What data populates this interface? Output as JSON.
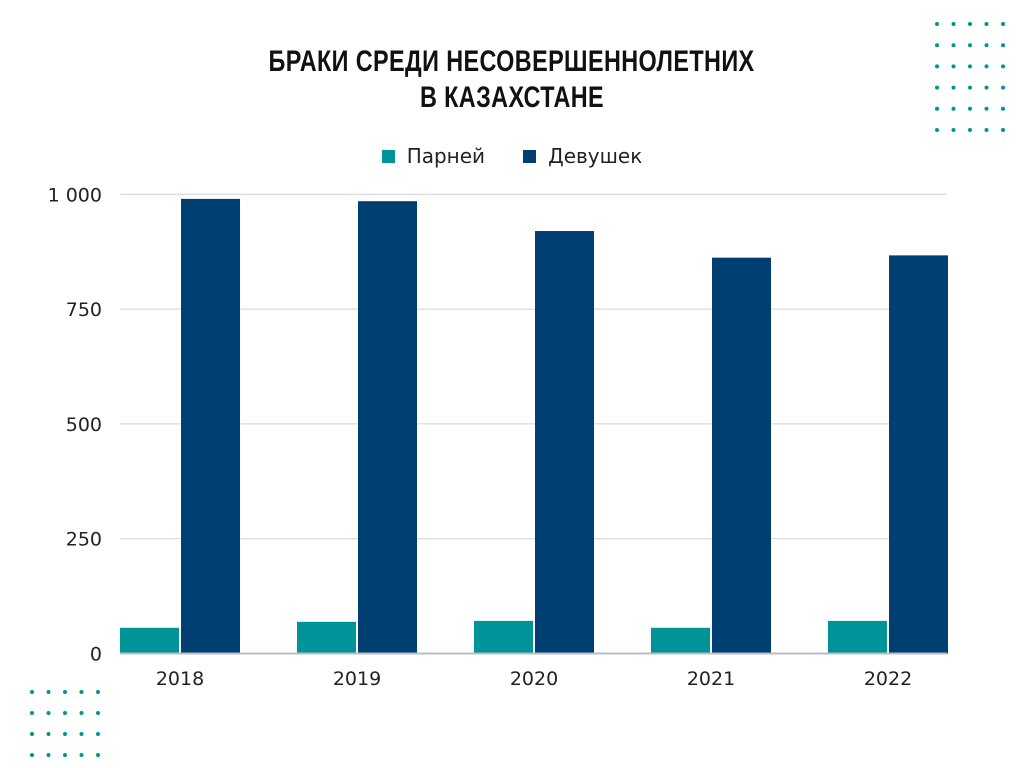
{
  "chart_data": {
    "type": "bar",
    "title_lines": [
      "БРАКИ СРЕДИ НЕСОВЕРШЕННОЛЕТНИХ",
      "В КАЗАХСТАНЕ"
    ],
    "categories": [
      "2018",
      "2019",
      "2020",
      "2021",
      "2022"
    ],
    "series": [
      {
        "name": "Парней",
        "color": "#009499",
        "values": [
          56,
          69,
          71,
          56,
          71
        ]
      },
      {
        "name": "Девушек",
        "color": "#003f72",
        "values": [
          990,
          985,
          920,
          862,
          867
        ]
      }
    ],
    "ylim": [
      0,
      1000
    ],
    "yticks": [
      0,
      250,
      500,
      750,
      1000
    ],
    "ytick_labels": [
      "0",
      "250",
      "500",
      "750",
      "1 000"
    ],
    "grid": true,
    "legend_position": "top",
    "decoration_color": "#009499"
  }
}
